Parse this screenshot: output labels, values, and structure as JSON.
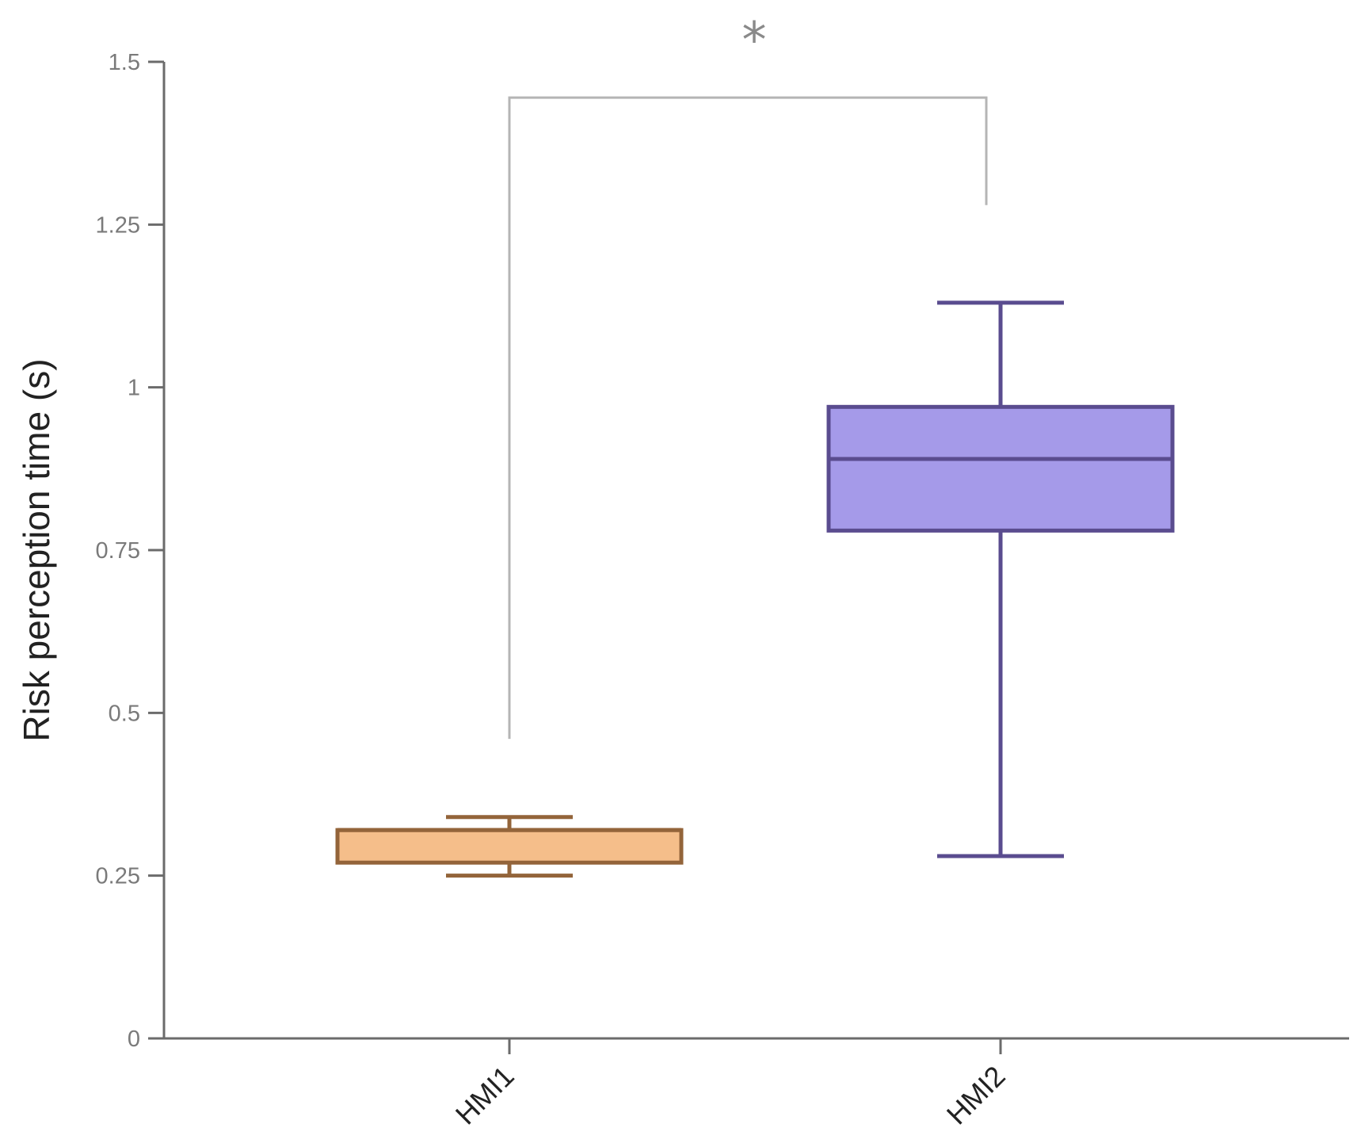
{
  "chart_data": {
    "type": "box",
    "title": "",
    "xlabel": "",
    "ylabel": "Risk perception time (s)",
    "ylim": [
      0,
      1.5
    ],
    "yticks": [
      0,
      0.25,
      0.5,
      0.75,
      1,
      1.25,
      1.5
    ],
    "ytick_labels": [
      "0",
      "0.25",
      "0.5",
      "0.75",
      "1",
      "1.25",
      "1.5"
    ],
    "categories": [
      "HMI1",
      "HMI2"
    ],
    "series": [
      {
        "name": "HMI1",
        "whisker_low": 0.25,
        "q1": 0.27,
        "median": 0.32,
        "q3": 0.32,
        "whisker_high": 0.34,
        "fill_color": "#f5be8a",
        "stroke_color": "#93643a"
      },
      {
        "name": "HMI2",
        "whisker_low": 0.28,
        "q1": 0.78,
        "median": 0.89,
        "q3": 0.97,
        "whisker_high": 1.13,
        "fill_color": "#a59ae9",
        "stroke_color": "#5a4c8f"
      }
    ],
    "significance": {
      "label": "*",
      "between": [
        "HMI1",
        "HMI2"
      ],
      "left_drop_to": 0.46,
      "right_drop_to": 1.28,
      "bracket_y": 1.445,
      "color": "#b5b5b5"
    },
    "grid": false,
    "legend": "none"
  }
}
